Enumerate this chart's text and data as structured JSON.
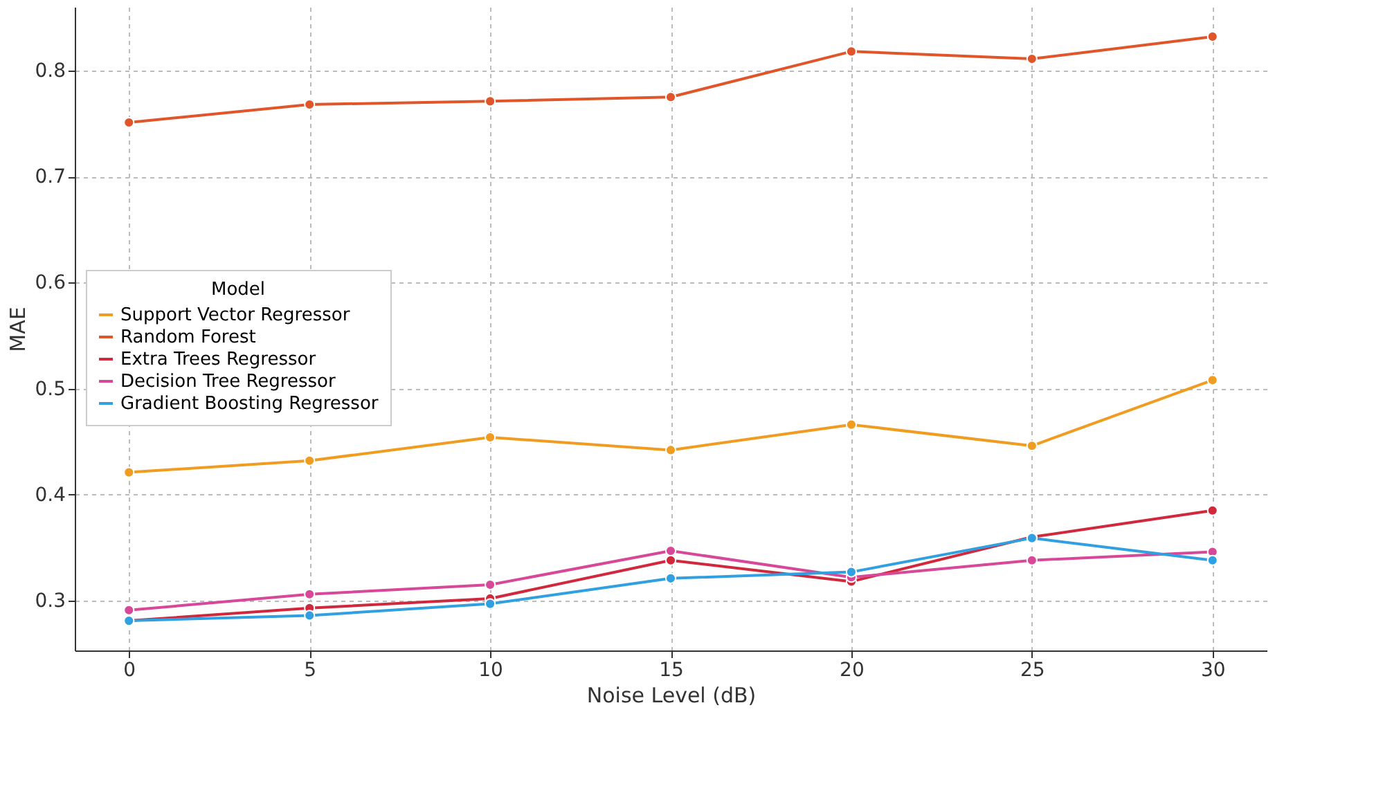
{
  "chart_data": {
    "type": "line",
    "xlabel": "Noise Level (dB)",
    "ylabel": "MAE",
    "legend_title": "Model",
    "x": [
      0,
      5,
      10,
      15,
      20,
      25,
      30
    ],
    "series": [
      {
        "name": "Support Vector Regressor",
        "color": "#f09c20",
        "values": [
          0.421,
          0.432,
          0.454,
          0.442,
          0.466,
          0.446,
          0.508
        ]
      },
      {
        "name": "Random Forest",
        "color": "#e0562a",
        "values": [
          0.751,
          0.768,
          0.771,
          0.775,
          0.818,
          0.811,
          0.832
        ]
      },
      {
        "name": "Extra Trees Regressor",
        "color": "#d0283c",
        "values": [
          0.281,
          0.293,
          0.302,
          0.338,
          0.318,
          0.36,
          0.385
        ]
      },
      {
        "name": "Decision Tree Regressor",
        "color": "#d84898",
        "values": [
          0.291,
          0.306,
          0.315,
          0.347,
          0.322,
          0.338,
          0.346
        ]
      },
      {
        "name": "Gradient Boosting Regressor",
        "color": "#30a0e0",
        "values": [
          0.281,
          0.286,
          0.297,
          0.321,
          0.327,
          0.359,
          0.338
        ]
      }
    ],
    "xlim": [
      -1.5,
      31.5
    ],
    "xticks": [
      0,
      5,
      10,
      15,
      20,
      25,
      30
    ],
    "ylim": [
      0.253,
      0.86
    ],
    "yticks": [
      0.3,
      0.4,
      0.5,
      0.6,
      0.7,
      0.8
    ],
    "grid": true,
    "legend": "left",
    "marker": "circle",
    "line_style": "solid"
  }
}
